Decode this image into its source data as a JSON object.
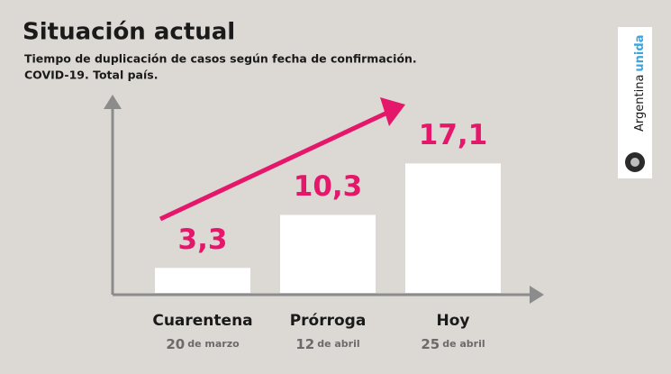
{
  "chart_data": {
    "type": "bar",
    "title": "Situación actual",
    "subtitle": [
      "Tiempo de duplicación de casos según fecha de confirmación.",
      "COVID-19. Total país."
    ],
    "categories": [
      "Cuarentena",
      "Prórroga",
      "Hoy"
    ],
    "category_dates": [
      {
        "day": "20",
        "month": "de marzo"
      },
      {
        "day": "12",
        "month": "de abril"
      },
      {
        "day": "25",
        "month": "de abril"
      }
    ],
    "values": [
      3.3,
      10.3,
      17.1
    ],
    "value_labels": [
      "3,3",
      "10,3",
      "17,1"
    ],
    "color": "#ffffff",
    "label_color": "#e5176b"
  },
  "branding": {
    "name": "Argentina",
    "tag": "unida"
  }
}
